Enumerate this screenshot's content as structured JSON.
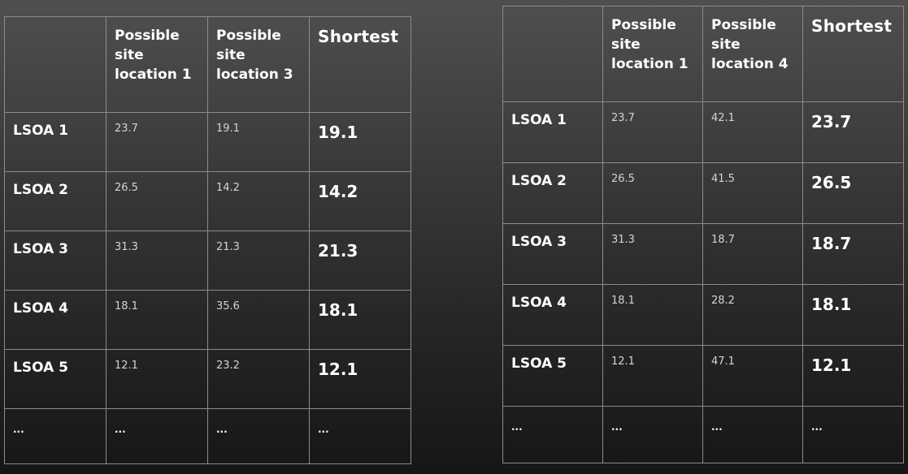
{
  "left_table": {
    "headers": [
      "",
      "Possible site location 1",
      "Possible site location 3",
      "Shortest"
    ],
    "rows": [
      {
        "label": "LSOA 1",
        "a": "23.7",
        "b": "19.1",
        "shortest": "19.1"
      },
      {
        "label": "LSOA 2",
        "a": "26.5",
        "b": "14.2",
        "shortest": "14.2"
      },
      {
        "label": "LSOA 3",
        "a": "31.3",
        "b": "21.3",
        "shortest": "21.3"
      },
      {
        "label": "LSOA 4",
        "a": "18.1",
        "b": "35.6",
        "shortest": "18.1"
      },
      {
        "label": "LSOA 5",
        "a": "12.1",
        "b": "23.2",
        "shortest": "12.1"
      },
      {
        "label": "...",
        "a": "...",
        "b": "...",
        "shortest": "..."
      }
    ]
  },
  "right_table": {
    "headers": [
      "",
      "Possible site location 1",
      "Possible site location 4",
      "Shortest"
    ],
    "rows": [
      {
        "label": "LSOA 1",
        "a": "23.7",
        "b": "42.1",
        "shortest": "23.7"
      },
      {
        "label": "LSOA 2",
        "a": "26.5",
        "b": "41.5",
        "shortest": "26.5"
      },
      {
        "label": "LSOA 3",
        "a": "31.3",
        "b": "18.7",
        "shortest": "18.7"
      },
      {
        "label": "LSOA 4",
        "a": "18.1",
        "b": "28.2",
        "shortest": "18.1"
      },
      {
        "label": "LSOA 5",
        "a": "12.1",
        "b": "47.1",
        "shortest": "12.1"
      },
      {
        "label": "...",
        "a": "...",
        "b": "...",
        "shortest": "..."
      }
    ]
  }
}
